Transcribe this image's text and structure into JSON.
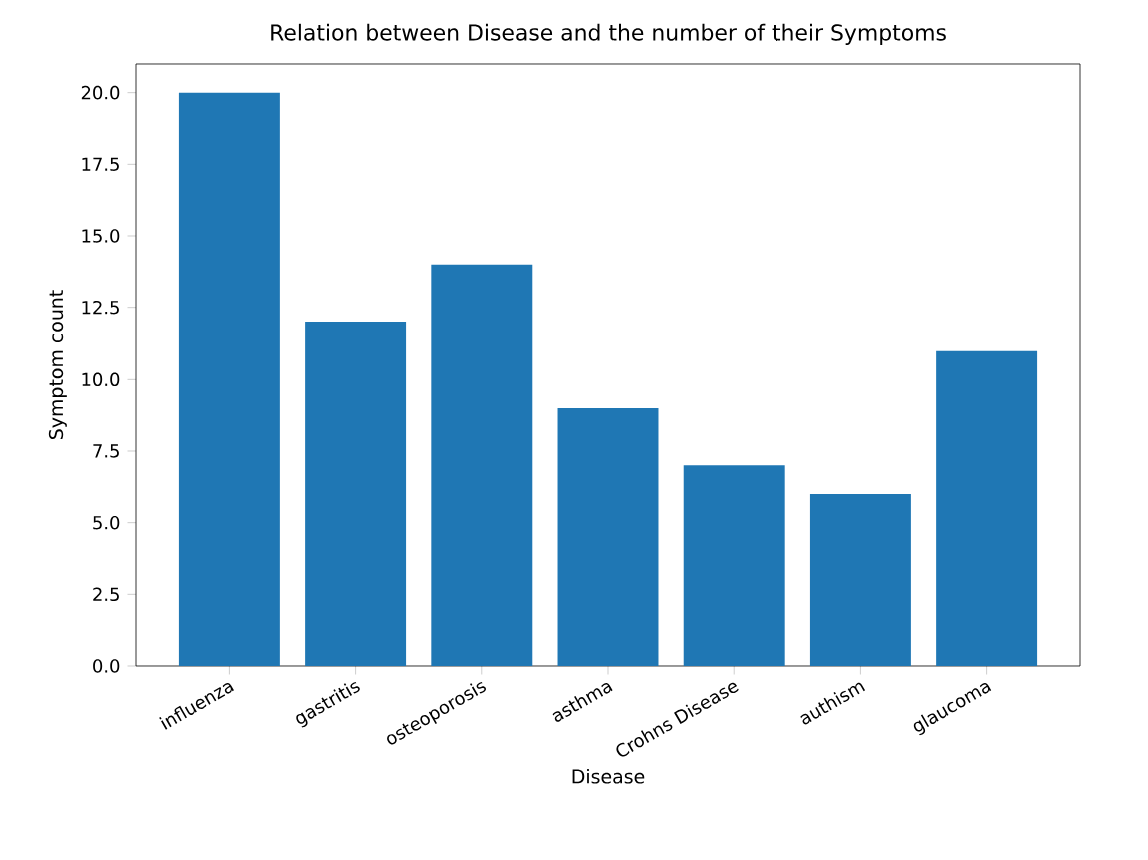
{
  "chart_data": {
    "type": "bar",
    "title": "Relation between Disease and the number of their Symptoms",
    "xlabel": "Disease",
    "ylabel": "Symptom count",
    "categories": [
      "influenza",
      "gastritis",
      "osteoporosis",
      "asthma",
      "Crohns Disease",
      "authism",
      "glaucoma"
    ],
    "values": [
      20,
      12,
      14,
      9,
      7,
      6,
      11
    ],
    "color": "#1f77b4",
    "ylim": [
      0,
      21
    ],
    "yticks": [
      {
        "value": 0,
        "label": "0.0"
      },
      {
        "value": 2.5,
        "label": "2.5"
      },
      {
        "value": 5,
        "label": "5.0"
      },
      {
        "value": 7.5,
        "label": "7.5"
      },
      {
        "value": 10,
        "label": "10.0"
      },
      {
        "value": 12.5,
        "label": "12.5"
      },
      {
        "value": 15,
        "label": "15.0"
      },
      {
        "value": 17.5,
        "label": "17.5"
      },
      {
        "value": 20,
        "label": "20.0"
      }
    ],
    "grid": false
  }
}
